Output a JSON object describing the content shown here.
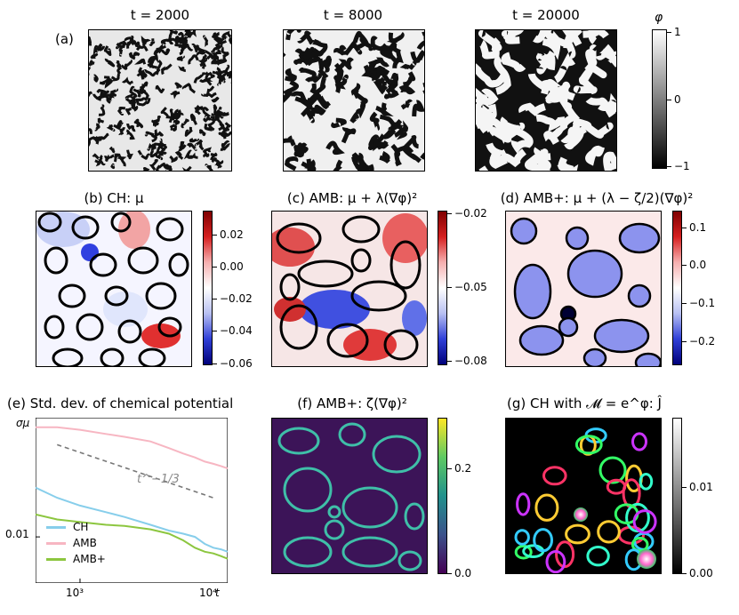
{
  "panel_a": {
    "label": "(a)",
    "times": [
      "t = 2000",
      "t = 8000",
      "t = 20000"
    ],
    "colorbar": {
      "symbol": "φ",
      "ticks": [
        "1",
        "0",
        "−1"
      ]
    }
  },
  "panel_b": {
    "title": "(b) CH: μ",
    "ticks": [
      "0.02",
      "0.00",
      "−0.02",
      "−0.04",
      "−0.06"
    ]
  },
  "panel_c": {
    "title": "(c) AMB: μ + λ(∇φ)²",
    "ticks": [
      "−0.02",
      "−0.05",
      "−0.08"
    ]
  },
  "panel_d": {
    "title": "(d) AMB+: μ + (λ − ζ/2)(∇φ)²",
    "ticks": [
      "0.1",
      "0.0",
      "−0.1",
      "−0.2"
    ]
  },
  "panel_e": {
    "title": "(e) Std. dev. of chemical potential",
    "ylabel": "σμ",
    "xlabel": "t",
    "xticks": [
      "10³",
      "10⁴"
    ],
    "yticks": [
      "0.01"
    ],
    "annotation": "t^−1/3",
    "legend": [
      {
        "name": "CH",
        "color": "#87ceeb"
      },
      {
        "name": "AMB",
        "color": "#f7b6c2"
      },
      {
        "name": "AMB+",
        "color": "#8cc63f"
      }
    ]
  },
  "panel_f": {
    "title": "(f) AMB+: ζ(∇φ)²",
    "ticks": [
      "0.2",
      "0.0"
    ]
  },
  "panel_g": {
    "title": "(g) CH with 𝓜 = e^φ: Ĵ",
    "ticks": [
      "0.01",
      "0.00"
    ]
  },
  "chart_data": {
    "type": "line",
    "title": "(e) Std. dev. of chemical potential",
    "xlabel": "t",
    "ylabel": "σμ",
    "xscale": "log",
    "yscale": "log",
    "xlim": [
      500,
      10000
    ],
    "ylim": [
      0.005,
      0.06
    ],
    "grid": false,
    "legend_position": "lower-left",
    "series": [
      {
        "name": "CH",
        "color": "#87ceeb",
        "x": [
          500,
          700,
          1000,
          1500,
          2000,
          3000,
          4000,
          5000,
          6000,
          7000,
          8000,
          9000,
          10000
        ],
        "y": [
          0.021,
          0.018,
          0.016,
          0.0145,
          0.0135,
          0.012,
          0.011,
          0.0105,
          0.01,
          0.009,
          0.0085,
          0.0083,
          0.008
        ]
      },
      {
        "name": "AMB",
        "color": "#f7b6c2",
        "x": [
          500,
          700,
          1000,
          1500,
          2000,
          3000,
          4000,
          5000,
          6000,
          7000,
          8000,
          9000,
          10000
        ],
        "y": [
          0.052,
          0.052,
          0.05,
          0.047,
          0.045,
          0.042,
          0.038,
          0.035,
          0.033,
          0.031,
          0.03,
          0.029,
          0.028
        ]
      },
      {
        "name": "AMB+",
        "color": "#8cc63f",
        "x": [
          500,
          700,
          1000,
          1500,
          2000,
          3000,
          4000,
          5000,
          6000,
          7000,
          8000,
          9000,
          10000
        ],
        "y": [
          0.014,
          0.013,
          0.0125,
          0.012,
          0.0118,
          0.0112,
          0.0105,
          0.0095,
          0.0085,
          0.008,
          0.0078,
          0.0075,
          0.0072
        ]
      }
    ],
    "reference_line": {
      "label": "t^−1/3",
      "x": [
        700,
        8000
      ],
      "y": [
        0.04,
        0.018
      ]
    }
  }
}
